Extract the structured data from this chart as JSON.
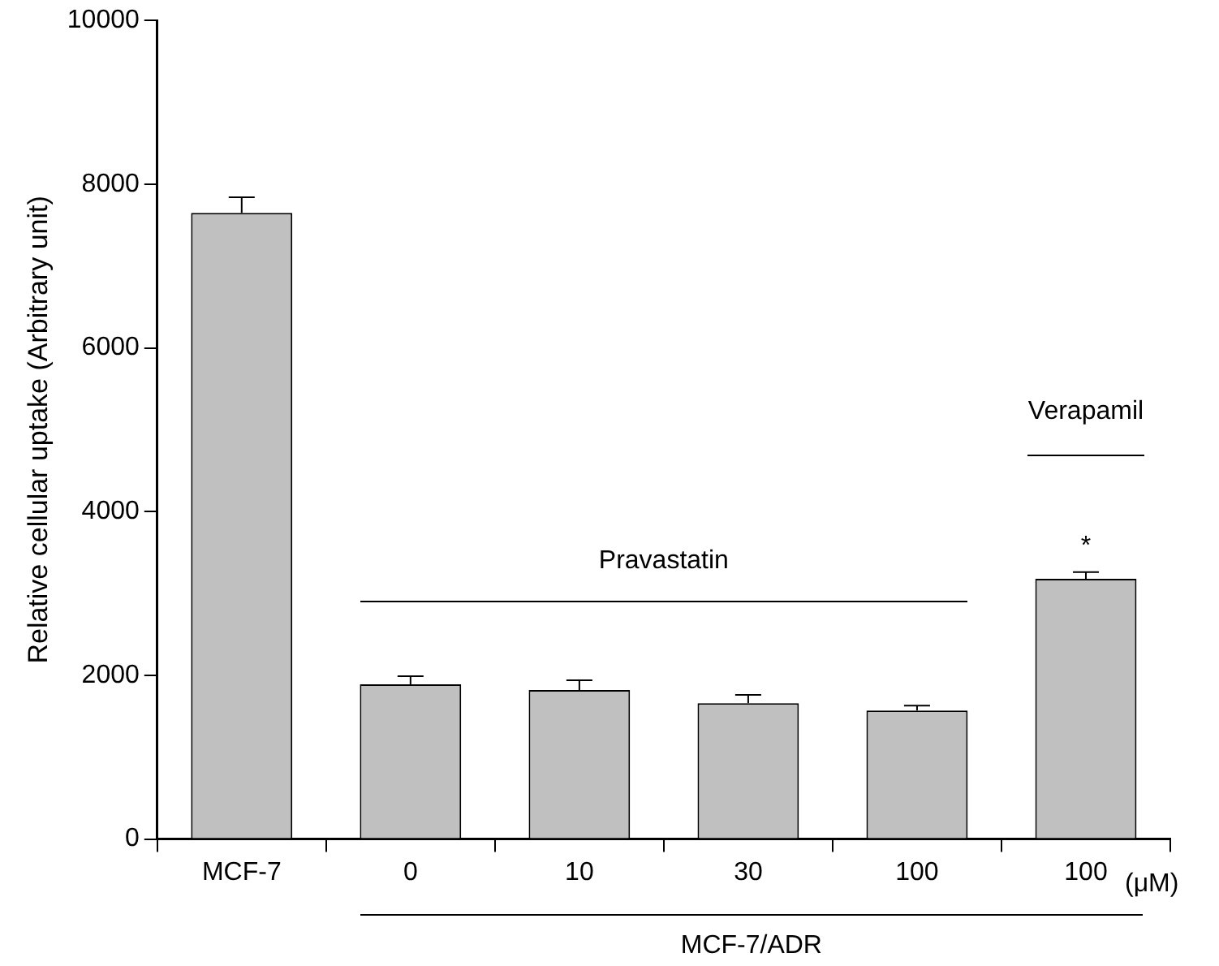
{
  "chart_data": {
    "type": "bar",
    "ylabel": "Relative cellular uptake (Arbitrary unit)",
    "categories": [
      "MCF-7",
      "0",
      "10",
      "30",
      "100",
      "100"
    ],
    "values": [
      7650,
      1890,
      1820,
      1660,
      1570,
      3180
    ],
    "errors": [
      [
        7650,
        7840
      ],
      [
        1890,
        1990
      ],
      [
        1820,
        1940
      ],
      [
        1660,
        1760
      ],
      [
        1570,
        1630
      ],
      [
        3180,
        3260
      ]
    ],
    "color": "#c0c0c0",
    "ylim": [
      0,
      10000
    ],
    "yticks": [
      0,
      2000,
      4000,
      6000,
      8000,
      10000
    ],
    "grid": false,
    "legend": false,
    "annotations": [
      "Pravastatin",
      "Verapamil",
      "*",
      "(μM)",
      "MCF-7/ADR"
    ]
  }
}
